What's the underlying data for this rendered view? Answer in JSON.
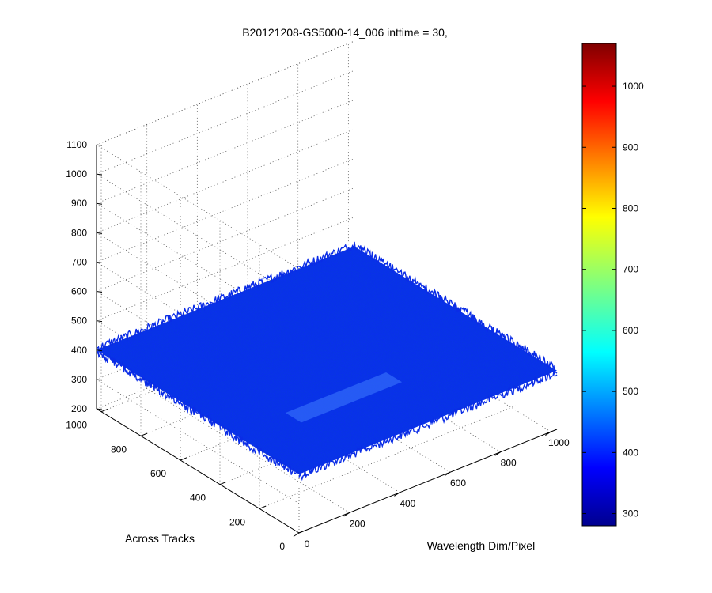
{
  "chart_data": {
    "type": "surface",
    "title": "B20121208-GS5000-14_006 inttime = 30,",
    "xlabel": "Wavelength Dim/Pixel",
    "ylabel": "Across Tracks",
    "zlabel": "",
    "xlim": [
      0,
      1024
    ],
    "ylim": [
      0,
      1024
    ],
    "zlim": [
      200,
      1100
    ],
    "x_ticks": [
      "0",
      "200",
      "400",
      "600",
      "800",
      "1000"
    ],
    "y_ticks": [
      "0",
      "200",
      "400",
      "600",
      "800",
      "1000"
    ],
    "z_ticks": [
      "200",
      "300",
      "400",
      "500",
      "600",
      "700",
      "800",
      "900",
      "1000",
      "1100"
    ],
    "colorbar": {
      "colormap": "jet",
      "range": [
        280,
        1070
      ],
      "ticks": [
        "300",
        "400",
        "500",
        "600",
        "700",
        "800",
        "900",
        "1000"
      ]
    },
    "grid": true,
    "surface": {
      "background_level": 400,
      "noise_amplitude": 30,
      "highlight": {
        "description_level": 450,
        "x_range": [
          150,
          550
        ],
        "y_range": [
          180,
          260
        ]
      }
    }
  }
}
